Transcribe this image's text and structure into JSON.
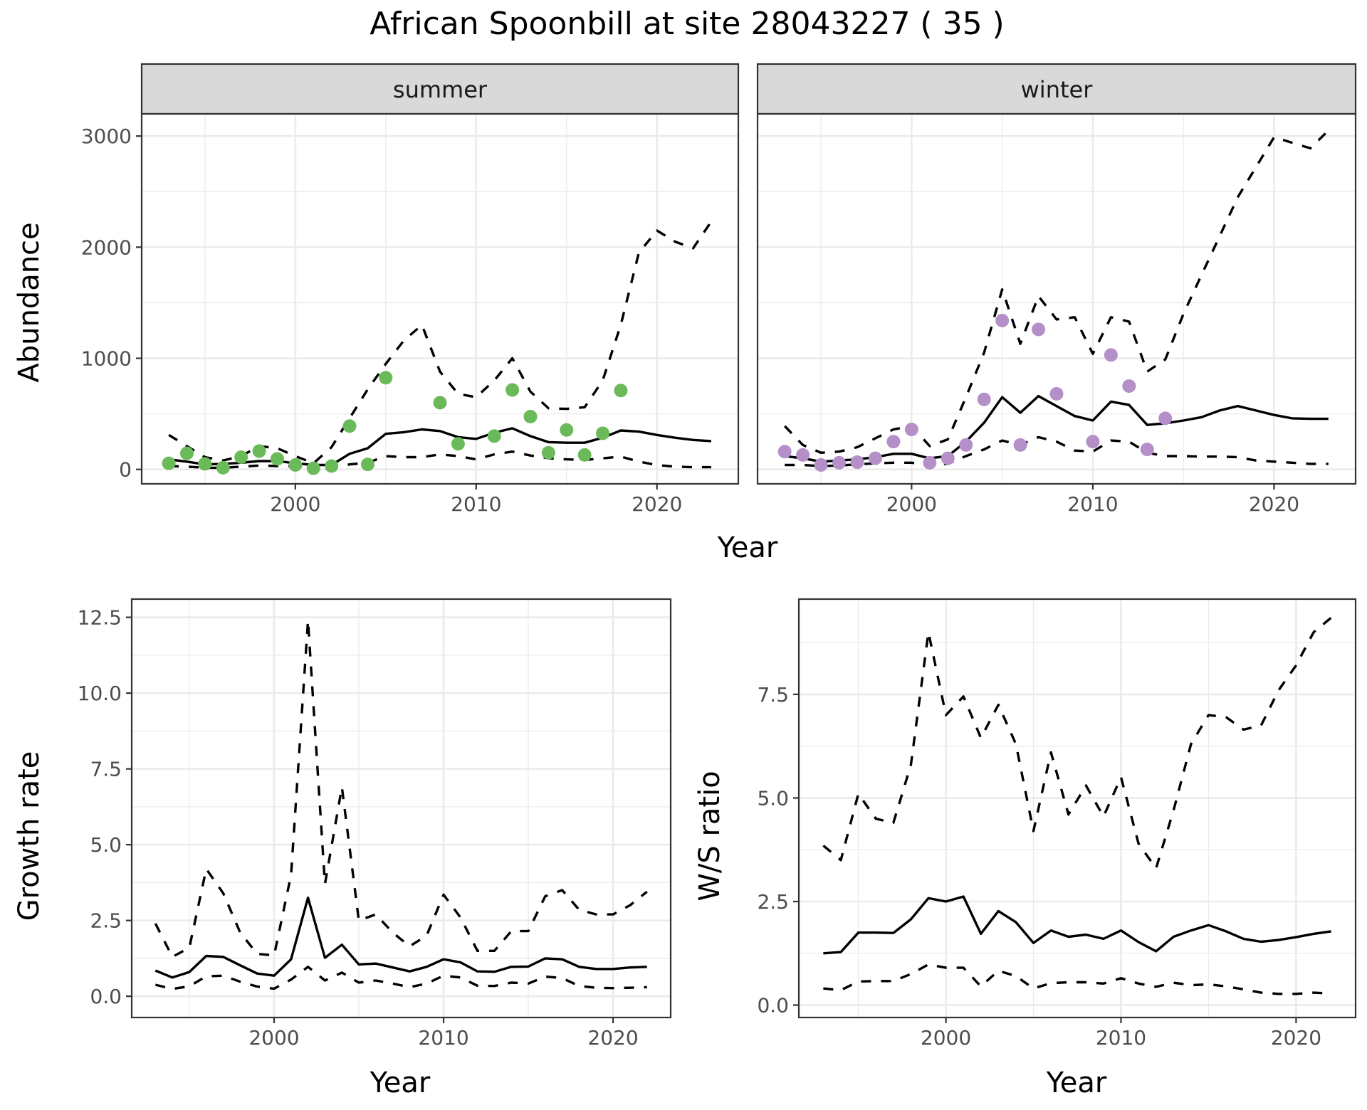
{
  "title": "African Spoonbill at site 28043227 ( 35 )",
  "colors": {
    "summer_points": "#6bba5a",
    "winter_points": "#b48fc8",
    "strip_bg": "#d9d9d9"
  },
  "chart_data": [
    {
      "type": "line",
      "panel": "summer",
      "strip_label": "summer",
      "xlabel": "Year",
      "ylabel": "Abundance",
      "xlim": [
        1991.5,
        2024.5
      ],
      "ylim": [
        -130,
        3200
      ],
      "xticks": [
        2000,
        2010,
        2020
      ],
      "yticks": [
        0,
        1000,
        2000,
        3000
      ],
      "x": [
        1993,
        1994,
        1995,
        1996,
        1997,
        1998,
        1999,
        2000,
        2001,
        2002,
        2003,
        2004,
        2005,
        2006,
        2007,
        2008,
        2009,
        2010,
        2011,
        2012,
        2013,
        2014,
        2015,
        2016,
        2017,
        2018,
        2019,
        2020,
        2021,
        2022,
        2023
      ],
      "series": [
        {
          "name": "estimate",
          "style": "solid",
          "values": [
            90,
            70,
            45,
            50,
            60,
            75,
            75,
            55,
            40,
            40,
            140,
            190,
            320,
            335,
            360,
            345,
            290,
            275,
            330,
            370,
            300,
            245,
            240,
            240,
            285,
            350,
            340,
            310,
            285,
            265,
            255
          ]
        },
        {
          "name": "upper",
          "style": "dashed",
          "values": [
            310,
            210,
            110,
            80,
            120,
            210,
            190,
            120,
            55,
            200,
            460,
            720,
            950,
            1160,
            1300,
            880,
            680,
            650,
            800,
            1000,
            700,
            550,
            545,
            560,
            800,
            1300,
            1950,
            2150,
            2050,
            1990,
            2230
          ]
        },
        {
          "name": "lower",
          "style": "dashed",
          "values": [
            30,
            25,
            15,
            15,
            25,
            35,
            30,
            30,
            20,
            15,
            45,
            60,
            120,
            110,
            110,
            135,
            120,
            90,
            135,
            160,
            125,
            100,
            90,
            85,
            100,
            115,
            70,
            40,
            25,
            20,
            20
          ]
        }
      ],
      "points": {
        "x": [
          1993,
          1994,
          1995,
          1996,
          1997,
          1998,
          1999,
          2000,
          2001,
          2002,
          2003,
          2004,
          2005,
          2008,
          2009,
          2011,
          2012,
          2013,
          2014,
          2015,
          2016,
          2017,
          2018
        ],
        "y": [
          55,
          145,
          50,
          15,
          110,
          165,
          95,
          40,
          10,
          30,
          390,
          45,
          825,
          600,
          230,
          300,
          715,
          475,
          150,
          355,
          130,
          325,
          710
        ]
      }
    },
    {
      "type": "line",
      "panel": "winter",
      "strip_label": "winter",
      "xlabel": "Year",
      "ylabel": "Abundance",
      "xlim": [
        1991.5,
        2024.5
      ],
      "ylim": [
        -130,
        3200
      ],
      "xticks": [
        2000,
        2010,
        2020
      ],
      "yticks": [
        0,
        1000,
        2000,
        3000
      ],
      "x": [
        1993,
        1994,
        1995,
        1996,
        1997,
        1998,
        1999,
        2000,
        2001,
        2002,
        2003,
        2004,
        2005,
        2006,
        2007,
        2008,
        2009,
        2010,
        2011,
        2012,
        2013,
        2014,
        2015,
        2016,
        2017,
        2018,
        2019,
        2020,
        2021,
        2022,
        2023
      ],
      "series": [
        {
          "name": "estimate",
          "style": "solid",
          "values": [
            120,
            100,
            70,
            80,
            90,
            110,
            140,
            140,
            100,
            120,
            250,
            420,
            650,
            510,
            660,
            570,
            480,
            440,
            610,
            580,
            400,
            415,
            440,
            470,
            530,
            570,
            530,
            490,
            460,
            455,
            455
          ]
        },
        {
          "name": "upper",
          "style": "dashed",
          "values": [
            390,
            220,
            150,
            160,
            200,
            280,
            360,
            390,
            210,
            270,
            650,
            1050,
            1620,
            1130,
            1560,
            1350,
            1370,
            1040,
            1370,
            1330,
            880,
            990,
            1400,
            1750,
            2100,
            2450,
            2720,
            2990,
            2940,
            2890,
            3050
          ]
        },
        {
          "name": "lower",
          "style": "dashed",
          "values": [
            40,
            40,
            30,
            35,
            45,
            55,
            60,
            60,
            40,
            50,
            120,
            180,
            260,
            220,
            290,
            250,
            170,
            160,
            260,
            250,
            150,
            120,
            120,
            115,
            115,
            110,
            80,
            70,
            60,
            50,
            50
          ]
        }
      ],
      "points": {
        "x": [
          1993,
          1994,
          1995,
          1996,
          1997,
          1998,
          1999,
          2000,
          2001,
          2002,
          2003,
          2004,
          2005,
          2006,
          2007,
          2008,
          2010,
          2011,
          2012,
          2013,
          2014
        ],
        "y": [
          160,
          130,
          40,
          60,
          65,
          100,
          250,
          360,
          60,
          100,
          220,
          630,
          1340,
          220,
          1260,
          680,
          250,
          1030,
          750,
          180,
          460
        ]
      }
    },
    {
      "type": "line",
      "panel": "growth",
      "xlabel": "Year",
      "ylabel": "Growth rate",
      "xlim": [
        1991.6,
        2023.4
      ],
      "ylim": [
        -0.7,
        13.1
      ],
      "xticks": [
        2000,
        2010,
        2020
      ],
      "yticks": [
        0.0,
        2.5,
        5.0,
        7.5,
        10.0,
        12.5
      ],
      "ytick_labels": [
        "0.0",
        "2.5",
        "5.0",
        "7.5",
        "10.0",
        "12.5"
      ],
      "x": [
        1993,
        1994,
        1995,
        1996,
        1997,
        1998,
        1999,
        2000,
        2001,
        2002,
        2003,
        2004,
        2005,
        2006,
        2007,
        2008,
        2009,
        2010,
        2011,
        2012,
        2013,
        2014,
        2015,
        2016,
        2017,
        2018,
        2019,
        2020,
        2021,
        2022
      ],
      "series": [
        {
          "name": "estimate",
          "style": "solid",
          "values": [
            0.85,
            0.62,
            0.8,
            1.33,
            1.3,
            1.02,
            0.75,
            0.68,
            1.22,
            3.25,
            1.27,
            1.7,
            1.05,
            1.08,
            0.95,
            0.82,
            0.97,
            1.22,
            1.12,
            0.82,
            0.81,
            0.97,
            0.98,
            1.25,
            1.22,
            0.97,
            0.9,
            0.9,
            0.95,
            0.97
          ]
        },
        {
          "name": "upper",
          "style": "dashed",
          "values": [
            2.4,
            1.3,
            1.6,
            4.2,
            3.4,
            2.1,
            1.4,
            1.35,
            4.0,
            12.4,
            3.7,
            6.9,
            2.5,
            2.7,
            2.1,
            1.65,
            2.0,
            3.35,
            2.6,
            1.5,
            1.5,
            2.15,
            2.15,
            3.3,
            3.5,
            2.85,
            2.7,
            2.7,
            3.0,
            3.45
          ]
        },
        {
          "name": "lower",
          "style": "dashed",
          "values": [
            0.38,
            0.24,
            0.33,
            0.66,
            0.68,
            0.48,
            0.32,
            0.25,
            0.55,
            0.97,
            0.52,
            0.78,
            0.45,
            0.52,
            0.42,
            0.3,
            0.42,
            0.68,
            0.62,
            0.35,
            0.34,
            0.45,
            0.42,
            0.65,
            0.6,
            0.34,
            0.28,
            0.27,
            0.28,
            0.3
          ]
        }
      ]
    },
    {
      "type": "line",
      "panel": "ratio",
      "xlabel": "Year",
      "ylabel": "W/S ratio",
      "xlim": [
        1991.6,
        2023.4
      ],
      "ylim": [
        -0.3,
        9.8
      ],
      "xticks": [
        2000,
        2010,
        2020
      ],
      "yticks": [
        0.0,
        2.5,
        5.0,
        7.5
      ],
      "ytick_labels": [
        "0.0",
        "2.5",
        "5.0",
        "7.5"
      ],
      "x": [
        1993,
        1994,
        1995,
        1996,
        1997,
        1998,
        1999,
        2000,
        2001,
        2002,
        2003,
        2004,
        2005,
        2006,
        2007,
        2008,
        2009,
        2010,
        2011,
        2012,
        2013,
        2014,
        2015,
        2016,
        2017,
        2018,
        2019,
        2020,
        2021,
        2022
      ],
      "series": [
        {
          "name": "estimate",
          "style": "solid",
          "values": [
            1.25,
            1.28,
            1.75,
            1.75,
            1.74,
            2.07,
            2.58,
            2.5,
            2.62,
            1.72,
            2.27,
            2.0,
            1.5,
            1.8,
            1.65,
            1.7,
            1.6,
            1.8,
            1.52,
            1.3,
            1.65,
            1.8,
            1.93,
            1.78,
            1.6,
            1.53,
            1.57,
            1.64,
            1.72,
            1.78
          ]
        },
        {
          "name": "upper",
          "style": "dashed",
          "values": [
            3.85,
            3.5,
            5.1,
            4.5,
            4.4,
            5.8,
            9.0,
            7.0,
            7.45,
            6.45,
            7.25,
            6.3,
            4.2,
            6.1,
            4.6,
            5.3,
            4.55,
            5.5,
            3.9,
            3.3,
            4.7,
            6.3,
            7.0,
            6.95,
            6.65,
            6.75,
            7.6,
            8.2,
            9.0,
            9.35
          ]
        },
        {
          "name": "lower",
          "style": "dashed",
          "values": [
            0.4,
            0.36,
            0.57,
            0.58,
            0.58,
            0.75,
            0.98,
            0.9,
            0.9,
            0.45,
            0.83,
            0.7,
            0.4,
            0.53,
            0.55,
            0.55,
            0.52,
            0.65,
            0.52,
            0.44,
            0.54,
            0.48,
            0.5,
            0.45,
            0.38,
            0.3,
            0.27,
            0.27,
            0.3,
            0.28
          ]
        }
      ]
    }
  ]
}
